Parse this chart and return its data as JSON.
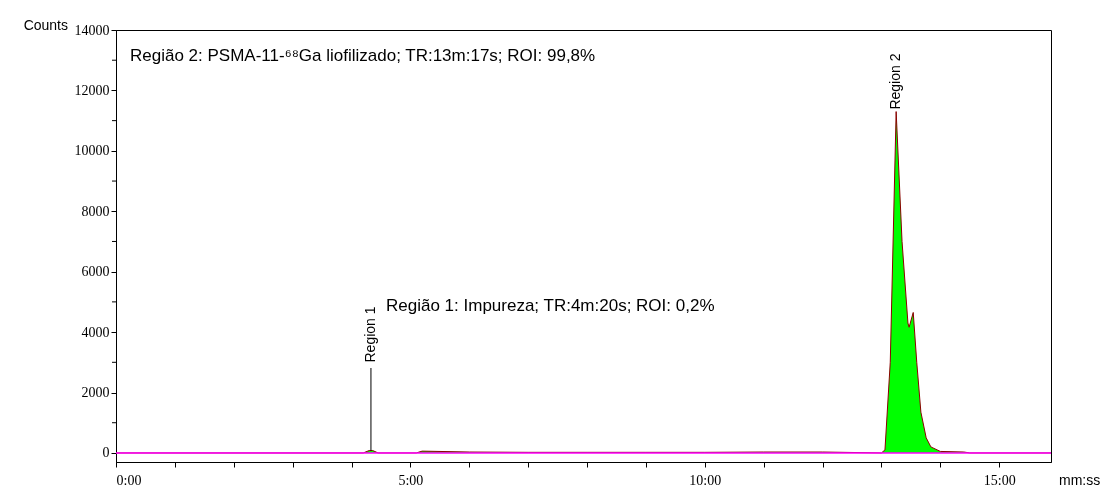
{
  "chart_data": {
    "type": "area",
    "xlabel": "mm:ss",
    "ylabel": "Counts",
    "annotations": [
      "Região 2: PSMA-11-⁶⁸Ga liofilizado; TR:13m:17s; ROI: 99,8%",
      "Região 1: Impureza; TR:4m:20s; ROI: 0,2%",
      {
        "text": "Region 1",
        "x": 4.33,
        "y": 80
      },
      {
        "text": "Region 2",
        "x": 13.25,
        "y": 11300
      }
    ],
    "series": [
      {
        "color": "#00ff00",
        "x": [
          0,
          4.2,
          4.3,
          4.36,
          4.45,
          5.1,
          5.2,
          6.0,
          7.0,
          8.0,
          9.0,
          10.0,
          11.0,
          12.0,
          13.0,
          13.06,
          13.15,
          13.25,
          13.35,
          13.45,
          13.47,
          13.54,
          13.6,
          13.67,
          13.76,
          13.84,
          14.0,
          14.4,
          14.5,
          15.88
        ],
        "values": [
          0,
          0,
          80,
          80,
          0,
          0,
          60,
          30,
          20,
          20,
          20,
          20,
          30,
          30,
          0,
          100,
          3000,
          11300,
          7000,
          4300,
          4160,
          4650,
          3000,
          1350,
          500,
          200,
          50,
          30,
          0,
          0
        ]
      }
    ],
    "ref_lines": [
      {
        "axis": "y",
        "value": 0,
        "color": "#ff00ff"
      }
    ],
    "xlim": [
      0,
      15.88
    ],
    "ylim": [
      -300,
      14000
    ],
    "xticks": [
      {
        "value": 0,
        "label": "0:00"
      },
      {
        "value": 1,
        "label": null
      },
      {
        "value": 2,
        "label": null
      },
      {
        "value": 3,
        "label": null
      },
      {
        "value": 4,
        "label": null
      },
      {
        "value": 5,
        "label": "5:00"
      },
      {
        "value": 6,
        "label": null
      },
      {
        "value": 7,
        "label": null
      },
      {
        "value": 8,
        "label": null
      },
      {
        "value": 9,
        "label": null
      },
      {
        "value": 10,
        "label": "10:00"
      },
      {
        "value": 11,
        "label": null
      },
      {
        "value": 12,
        "label": null
      },
      {
        "value": 13,
        "label": null
      },
      {
        "value": 14,
        "label": null
      },
      {
        "value": 15,
        "label": "15:00"
      }
    ],
    "yticks": [
      0,
      {
        "value": 1000,
        "label": null
      },
      2000,
      {
        "value": 3000,
        "label": null
      },
      4000,
      {
        "value": 5000,
        "label": null
      },
      6000,
      {
        "value": 7000,
        "label": null
      },
      8000,
      {
        "value": 9000,
        "label": null
      },
      10000,
      {
        "value": 11000,
        "label": null
      },
      12000,
      {
        "value": 13000,
        "label": null
      },
      14000
    ],
    "grid": false
  }
}
